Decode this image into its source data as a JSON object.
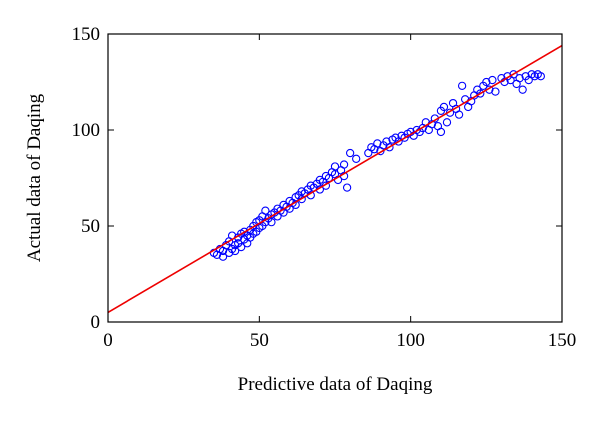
{
  "chart_data": {
    "type": "scatter",
    "xlabel": "Predictive data of Daqing",
    "ylabel": "Actual data of Daqing",
    "xlim": [
      0,
      150
    ],
    "ylim": [
      0,
      150
    ],
    "xticks": [
      0,
      50,
      100,
      150
    ],
    "yticks": [
      0,
      50,
      100,
      150
    ],
    "grid": false,
    "series": [
      {
        "type": "scatter",
        "color": "#0000ff",
        "x": [
          35,
          36,
          37,
          38,
          38,
          39,
          40,
          40,
          41,
          41,
          42,
          42,
          43,
          43,
          44,
          44,
          45,
          45,
          46,
          46,
          47,
          47,
          48,
          48,
          49,
          49,
          50,
          50,
          51,
          51,
          52,
          52,
          53,
          54,
          54,
          55,
          56,
          56,
          57,
          58,
          58,
          59,
          60,
          60,
          61,
          62,
          62,
          63,
          64,
          64,
          65,
          66,
          67,
          67,
          68,
          69,
          70,
          70,
          71,
          72,
          72,
          73,
          74,
          75,
          75,
          76,
          77,
          78,
          78,
          79,
          80,
          82,
          86,
          87,
          88,
          89,
          90,
          91,
          92,
          93,
          94,
          95,
          96,
          97,
          98,
          99,
          100,
          101,
          102,
          103,
          104,
          105,
          106,
          107,
          108,
          109,
          110,
          110,
          111,
          112,
          113,
          114,
          115,
          116,
          117,
          118,
          119,
          120,
          121,
          122,
          123,
          124,
          125,
          126,
          127,
          128,
          130,
          131,
          132,
          133,
          134,
          135,
          136,
          137,
          138,
          139,
          140,
          141,
          142,
          143
        ],
        "values": [
          36,
          35,
          38,
          34,
          37,
          40,
          36,
          42,
          38,
          45,
          40,
          37,
          44,
          41,
          39,
          46,
          43,
          47,
          45,
          41,
          48,
          44,
          50,
          46,
          47,
          52,
          49,
          53,
          50,
          55,
          52,
          58,
          54,
          56,
          52,
          57,
          55,
          59,
          58,
          61,
          57,
          60,
          63,
          59,
          62,
          65,
          61,
          66,
          68,
          64,
          67,
          69,
          66,
          71,
          70,
          72,
          69,
          74,
          73,
          76,
          71,
          75,
          78,
          77,
          81,
          74,
          79,
          76,
          82,
          70,
          88,
          85,
          88,
          91,
          90,
          93,
          89,
          92,
          94,
          91,
          95,
          96,
          94,
          97,
          96,
          98,
          99,
          97,
          100,
          99,
          101,
          104,
          100,
          103,
          106,
          102,
          110,
          99,
          112,
          104,
          109,
          114,
          111,
          108,
          123,
          116,
          112,
          115,
          118,
          121,
          119,
          123,
          125,
          121,
          126,
          120,
          127,
          125,
          128,
          126,
          129,
          124,
          127,
          121,
          128,
          126,
          129,
          128,
          129,
          128
        ]
      },
      {
        "type": "line",
        "color": "#ee0000",
        "x": [
          0,
          150
        ],
        "values": [
          5,
          144
        ]
      }
    ]
  }
}
